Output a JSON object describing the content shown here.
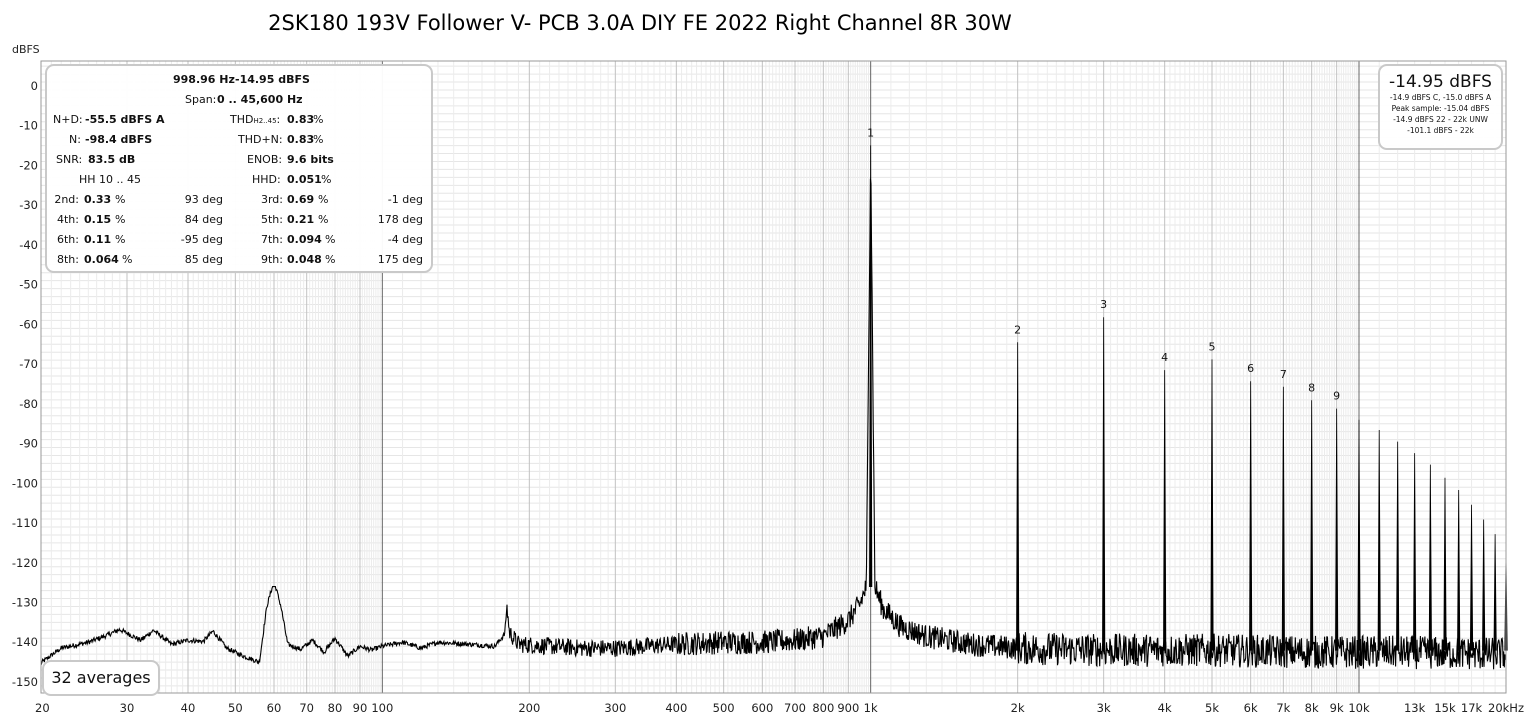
{
  "chart_data": {
    "type": "line",
    "title": "2SK180 193V Follower V- PCB 3.0A DIY FE 2022 Right Channel 8R 30W",
    "ylabel": "dBFS",
    "xunit": "Hz",
    "x_scale": "log",
    "xlim": [
      20,
      20000
    ],
    "ylim": [
      -152,
      5
    ],
    "grid": true,
    "y_ticks": [
      0,
      -10,
      -20,
      -30,
      -40,
      -50,
      -60,
      -70,
      -80,
      -90,
      -100,
      -110,
      -120,
      -130,
      -140,
      -150
    ],
    "x_ticks": [
      {
        "value": 20,
        "label": "20"
      },
      {
        "value": 30,
        "label": "30"
      },
      {
        "value": 40,
        "label": "40"
      },
      {
        "value": 50,
        "label": "50"
      },
      {
        "value": 60,
        "label": "60"
      },
      {
        "value": 70,
        "label": "70"
      },
      {
        "value": 80,
        "label": "80"
      },
      {
        "value": 90,
        "label": "90"
      },
      {
        "value": 100,
        "label": "100"
      },
      {
        "value": 200,
        "label": "200"
      },
      {
        "value": 300,
        "label": "300"
      },
      {
        "value": 400,
        "label": "400"
      },
      {
        "value": 500,
        "label": "500"
      },
      {
        "value": 600,
        "label": "600"
      },
      {
        "value": 700,
        "label": "700"
      },
      {
        "value": 800,
        "label": "800"
      },
      {
        "value": 900,
        "label": "900"
      },
      {
        "value": 1000,
        "label": "1k"
      },
      {
        "value": 2000,
        "label": "2k"
      },
      {
        "value": 3000,
        "label": "3k"
      },
      {
        "value": 4000,
        "label": "4k"
      },
      {
        "value": 5000,
        "label": "5k"
      },
      {
        "value": 6000,
        "label": "6k"
      },
      {
        "value": 7000,
        "label": "7k"
      },
      {
        "value": 8000,
        "label": "8k"
      },
      {
        "value": 9000,
        "label": "9k"
      },
      {
        "value": 10000,
        "label": "10k"
      },
      {
        "value": 13000,
        "label": "13k"
      },
      {
        "value": 15000,
        "label": "15k"
      },
      {
        "value": 17000,
        "label": "17k"
      },
      {
        "value": 20000,
        "label": "20kHz"
      }
    ],
    "harmonics": [
      {
        "n": 1,
        "freq": 1000,
        "level": -14.95,
        "label": "1"
      },
      {
        "n": 2,
        "freq": 2000,
        "level": -64.5,
        "label": "2"
      },
      {
        "n": 3,
        "freq": 3000,
        "level": -58.2,
        "label": "3"
      },
      {
        "n": 4,
        "freq": 4000,
        "level": -71.5,
        "label": "4"
      },
      {
        "n": 5,
        "freq": 5000,
        "level": -68.8,
        "label": "5"
      },
      {
        "n": 6,
        "freq": 6000,
        "level": -74.3,
        "label": "6"
      },
      {
        "n": 7,
        "freq": 7000,
        "level": -75.7,
        "label": "7"
      },
      {
        "n": 8,
        "freq": 8000,
        "level": -79.1,
        "label": "8"
      },
      {
        "n": 9,
        "freq": 9000,
        "level": -81.2,
        "label": "9"
      },
      {
        "n": 10,
        "freq": 10000,
        "level": -84.0,
        "label": ""
      },
      {
        "n": 11,
        "freq": 11000,
        "level": -86.6,
        "label": ""
      },
      {
        "n": 12,
        "freq": 12000,
        "level": -89.5,
        "label": ""
      },
      {
        "n": 13,
        "freq": 13000,
        "level": -92.4,
        "label": ""
      },
      {
        "n": 14,
        "freq": 14000,
        "level": -95.3,
        "label": ""
      },
      {
        "n": 15,
        "freq": 15000,
        "level": -98.6,
        "label": ""
      },
      {
        "n": 16,
        "freq": 16000,
        "level": -101.7,
        "label": ""
      },
      {
        "n": 17,
        "freq": 17000,
        "level": -105.4,
        "label": ""
      },
      {
        "n": 18,
        "freq": 18000,
        "level": -109.1,
        "label": ""
      },
      {
        "n": 19,
        "freq": 19000,
        "level": -112.8,
        "label": ""
      },
      {
        "n": 20,
        "freq": 20000,
        "level": -117.8,
        "label": ""
      }
    ],
    "noise_floor": [
      [
        20,
        -145.2
      ],
      [
        22,
        -141.5
      ],
      [
        25,
        -140.0
      ],
      [
        27,
        -138.5
      ],
      [
        29,
        -136.8
      ],
      [
        32,
        -139.5
      ],
      [
        34,
        -137.0
      ],
      [
        37,
        -140.5
      ],
      [
        40,
        -139.5
      ],
      [
        43,
        -139.8
      ],
      [
        45,
        -137.2
      ],
      [
        48,
        -141.5
      ],
      [
        52,
        -143.5
      ],
      [
        56,
        -145.0
      ],
      [
        58,
        -131.0
      ],
      [
        60,
        -124.5
      ],
      [
        62,
        -131.0
      ],
      [
        64,
        -140.5
      ],
      [
        68,
        -141.8
      ],
      [
        72,
        -139.5
      ],
      [
        76,
        -142.5
      ],
      [
        80,
        -139.0
      ],
      [
        85,
        -143.5
      ],
      [
        90,
        -141.0
      ],
      [
        95,
        -142.0
      ],
      [
        100,
        -141.0
      ],
      [
        110,
        -140.0
      ],
      [
        120,
        -141.5
      ],
      [
        130,
        -140.0
      ],
      [
        150,
        -140.5
      ],
      [
        170,
        -141.0
      ],
      [
        178,
        -138.0
      ],
      [
        180,
        -130.8
      ],
      [
        182,
        -137.5
      ],
      [
        190,
        -140.5
      ],
      [
        220,
        -141.0
      ],
      [
        260,
        -141.5
      ],
      [
        300,
        -141.5
      ],
      [
        400,
        -140.5
      ],
      [
        500,
        -140.0
      ],
      [
        600,
        -140.0
      ],
      [
        700,
        -139.5
      ],
      [
        800,
        -138.5
      ],
      [
        900,
        -134.5
      ],
      [
        950,
        -130.5
      ],
      [
        980,
        -126.0
      ],
      [
        1000,
        -14.95
      ],
      [
        1020,
        -126.0
      ],
      [
        1060,
        -131.5
      ],
      [
        1150,
        -136.0
      ],
      [
        1300,
        -138.5
      ],
      [
        1600,
        -140.5
      ],
      [
        2000,
        -141.5
      ],
      [
        3000,
        -142.0
      ],
      [
        5000,
        -142.0
      ],
      [
        8000,
        -142.5
      ],
      [
        12000,
        -142.5
      ],
      [
        20000,
        -143.0
      ]
    ]
  },
  "stats": {
    "fund_freq": "998.96 Hz",
    "fund_level": "-14.95 dBFS",
    "span_label": "Span:",
    "span_value": "0 .. 45,600 Hz",
    "nd_label": "N+D:",
    "nd_value": "-55.5 dBFS A",
    "thd_label": "THD",
    "thd_sub": "H2..45",
    "thd_colon": ":",
    "thd_value": "0.83",
    "thd_unit": "%",
    "n_label": "N:",
    "n_value": "-98.4 dBFS",
    "thdn_label": "THD+N:",
    "thdn_value": "0.83",
    "thdn_unit": "%",
    "snr_label": "SNR:",
    "snr_value": "83.5 dB",
    "enob_label": "ENOB:",
    "enob_value": "9.6 bits",
    "hh_label": "HH 10 .. 45",
    "hhd_label": "HHD:",
    "hhd_value": "0.051",
    "hhd_unit": "%",
    "harmonic_rows": [
      {
        "l_label": "2nd:",
        "l_value": "0.33",
        "l_unit": "%",
        "l_phase": "93 deg",
        "r_label": "3rd:",
        "r_value": "0.69",
        "r_unit": "%",
        "r_phase": "-1 deg"
      },
      {
        "l_label": "4th:",
        "l_value": "0.15",
        "l_unit": "%",
        "l_phase": "84 deg",
        "r_label": "5th:",
        "r_value": "0.21",
        "r_unit": "%",
        "r_phase": "178 deg"
      },
      {
        "l_label": "6th:",
        "l_value": "0.11",
        "l_unit": "%",
        "l_phase": "-95 deg",
        "r_label": "7th:",
        "r_value": "0.094",
        "r_unit": "%",
        "r_phase": "-4 deg"
      },
      {
        "l_label": "8th:",
        "l_value": "0.064",
        "l_unit": "%",
        "l_phase": "85 deg",
        "r_label": "9th:",
        "r_value": "0.048",
        "r_unit": "%",
        "r_phase": "175 deg"
      }
    ]
  },
  "level_box": {
    "main": "-14.95 dBFS",
    "lines": [
      "-14.9 dBFS C, -15.0 dBFS A",
      "Peak sample: -15.04 dBFS",
      "-14.9 dBFS 22 - 22k UNW",
      "-101.1 dBFS - 22k"
    ]
  },
  "averages_label": "32 averages",
  "colors": {
    "trace": "#000000",
    "grid_minor": "#e2e2e2",
    "grid_major": "#bdbdbd",
    "decade": "#555555",
    "box_border": "#c9c9c9"
  }
}
